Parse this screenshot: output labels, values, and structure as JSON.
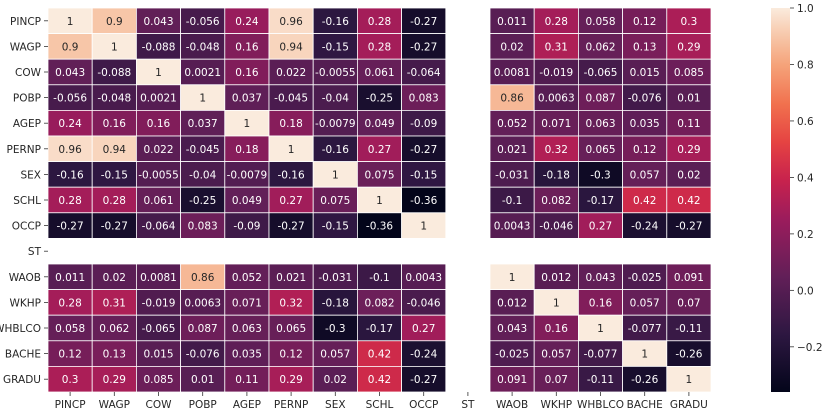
{
  "chart_data": {
    "type": "heatmap",
    "title": "",
    "xlabel": "",
    "ylabel": "",
    "row_labels": [
      "PINCP",
      "WAGP",
      "COW",
      "POBP",
      "AGEP",
      "PERNP",
      "SEX",
      "SCHL",
      "OCCP",
      "ST",
      "WAOB",
      "WKHP",
      "WHBLCO",
      "BACHE",
      "GRADU"
    ],
    "col_labels": [
      "PINCP",
      "WAGP",
      "COW",
      "POBP",
      "AGEP",
      "PERNP",
      "SEX",
      "SCHL",
      "OCCP",
      "ST",
      "WAOB",
      "WKHP",
      "WHBLCO",
      "BACHE",
      "GRADU"
    ],
    "values": [
      [
        "1",
        "0.9",
        "0.043",
        "-0.056",
        "0.24",
        "0.96",
        "-0.16",
        "0.28",
        "-0.27",
        null,
        "0.011",
        "0.28",
        "0.058",
        "0.12",
        "0.3"
      ],
      [
        "0.9",
        "1",
        "-0.088",
        "-0.048",
        "0.16",
        "0.94",
        "-0.15",
        "0.28",
        "-0.27",
        null,
        "0.02",
        "0.31",
        "0.062",
        "0.13",
        "0.29"
      ],
      [
        "0.043",
        "-0.088",
        "1",
        "0.0021",
        "0.16",
        "0.022",
        "-0.0055",
        "0.061",
        "-0.064",
        null,
        "0.0081",
        "-0.019",
        "-0.065",
        "0.015",
        "0.085"
      ],
      [
        "-0.056",
        "-0.048",
        "0.0021",
        "1",
        "0.037",
        "-0.045",
        "-0.04",
        "-0.25",
        "0.083",
        null,
        "0.86",
        "0.0063",
        "0.087",
        "-0.076",
        "0.01"
      ],
      [
        "0.24",
        "0.16",
        "0.16",
        "0.037",
        "1",
        "0.18",
        "-0.0079",
        "0.049",
        "-0.09",
        null,
        "0.052",
        "0.071",
        "0.063",
        "0.035",
        "0.11"
      ],
      [
        "0.96",
        "0.94",
        "0.022",
        "-0.045",
        "0.18",
        "1",
        "-0.16",
        "0.27",
        "-0.27",
        null,
        "0.021",
        "0.32",
        "0.065",
        "0.12",
        "0.29"
      ],
      [
        "-0.16",
        "-0.15",
        "-0.0055",
        "-0.04",
        "-0.0079",
        "-0.16",
        "1",
        "0.075",
        "-0.15",
        null,
        "-0.031",
        "-0.18",
        "-0.3",
        "0.057",
        "0.02"
      ],
      [
        "0.28",
        "0.28",
        "0.061",
        "-0.25",
        "0.049",
        "0.27",
        "0.075",
        "1",
        "-0.36",
        null,
        "-0.1",
        "0.082",
        "-0.17",
        "0.42",
        "0.42"
      ],
      [
        "-0.27",
        "-0.27",
        "-0.064",
        "0.083",
        "-0.09",
        "-0.27",
        "-0.15",
        "-0.36",
        "1",
        null,
        "0.0043",
        "-0.046",
        "0.27",
        "-0.24",
        "-0.27"
      ],
      [
        null,
        null,
        null,
        null,
        null,
        null,
        null,
        null,
        null,
        null,
        null,
        null,
        null,
        null,
        null
      ],
      [
        "0.011",
        "0.02",
        "0.0081",
        "0.86",
        "0.052",
        "0.021",
        "-0.031",
        "-0.1",
        "0.0043",
        null,
        "1",
        "0.012",
        "0.043",
        "-0.025",
        "0.091"
      ],
      [
        "0.28",
        "0.31",
        "-0.019",
        "0.0063",
        "0.071",
        "0.32",
        "-0.18",
        "0.082",
        "-0.046",
        null,
        "0.012",
        "1",
        "0.16",
        "0.057",
        "0.07"
      ],
      [
        "0.058",
        "0.062",
        "-0.065",
        "0.087",
        "0.063",
        "0.065",
        "-0.3",
        "-0.17",
        "0.27",
        null,
        "0.043",
        "0.16",
        "1",
        "-0.077",
        "-0.11"
      ],
      [
        "0.12",
        "0.13",
        "0.015",
        "-0.076",
        "0.035",
        "0.12",
        "0.057",
        "0.42",
        "-0.24",
        null,
        "-0.025",
        "0.057",
        "-0.077",
        "1",
        "-0.26"
      ],
      [
        "0.3",
        "0.29",
        "0.085",
        "0.01",
        "0.11",
        "0.29",
        "0.02",
        "0.42",
        "-0.27",
        null,
        "0.091",
        "0.07",
        "-0.11",
        "-0.26",
        "1"
      ]
    ],
    "colorbar": {
      "vmin": -0.36,
      "vmax": 1.0,
      "ticks": [
        -0.2,
        0.0,
        0.2,
        0.4,
        0.6,
        0.8,
        1.0
      ],
      "tick_labels": [
        "−0.2",
        "0.0",
        "0.2",
        "0.4",
        "0.6",
        "0.8",
        "1.0"
      ],
      "colormap": "rocket"
    },
    "grid": false,
    "legend": "colorbar-right"
  }
}
